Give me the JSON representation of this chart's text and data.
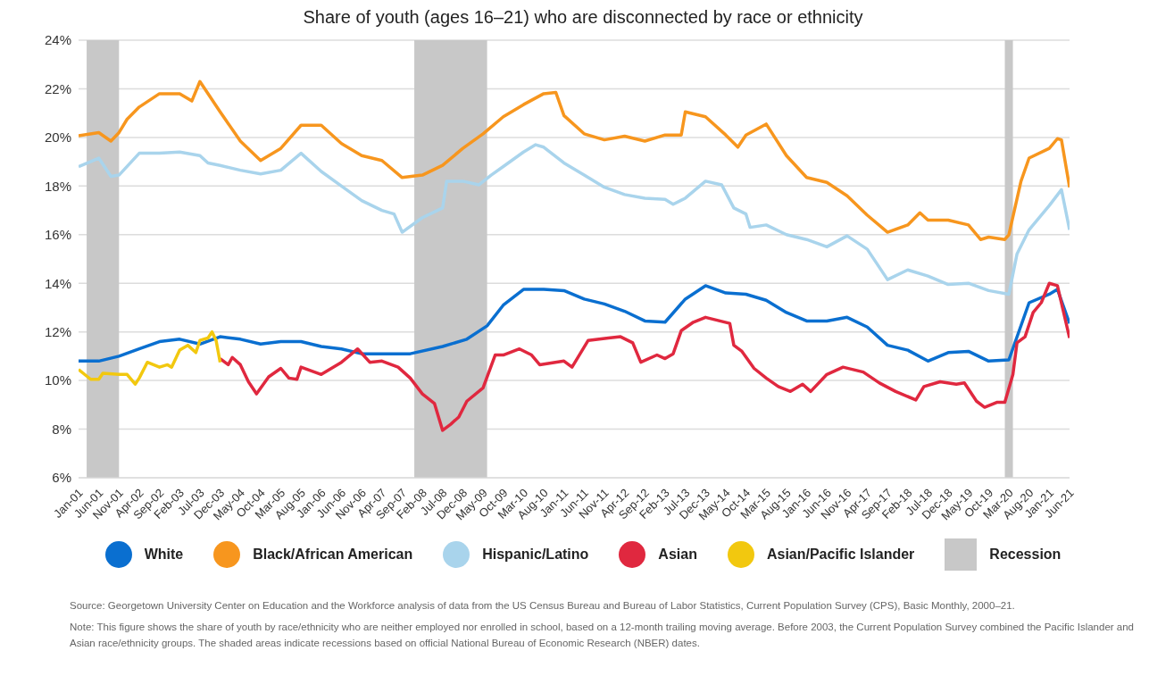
{
  "chart_data": {
    "type": "line",
    "title": "Share of youth (ages 16–21) who are disconnected by race or ethnicity",
    "xlim": [
      "2001-01",
      "2021-06"
    ],
    "xticks": [
      {
        "value": "2001-01",
        "label": "Jan-01"
      },
      {
        "value": "2001-06",
        "label": "Jun-01"
      },
      {
        "value": "2001-11",
        "label": "Nov-01"
      },
      {
        "value": "2002-04",
        "label": "Apr-02"
      },
      {
        "value": "2002-09",
        "label": "Sep-02"
      },
      {
        "value": "2003-02",
        "label": "Feb-03"
      },
      {
        "value": "2003-07",
        "label": "Jul-03"
      },
      {
        "value": "2003-12",
        "label": "Dec-03"
      },
      {
        "value": "2004-05",
        "label": "May-04"
      },
      {
        "value": "2004-10",
        "label": "Oct-04"
      },
      {
        "value": "2005-03",
        "label": "Mar-05"
      },
      {
        "value": "2005-08",
        "label": "Aug-05"
      },
      {
        "value": "2006-01",
        "label": "Jan-06"
      },
      {
        "value": "2006-06",
        "label": "Jun-06"
      },
      {
        "value": "2006-11",
        "label": "Nov-06"
      },
      {
        "value": "2007-04",
        "label": "Apr-07"
      },
      {
        "value": "2007-09",
        "label": "Sep-07"
      },
      {
        "value": "2008-02",
        "label": "Feb-08"
      },
      {
        "value": "2008-07",
        "label": "Jul-08"
      },
      {
        "value": "2008-12",
        "label": "Dec-08"
      },
      {
        "value": "2009-05",
        "label": "May-09"
      },
      {
        "value": "2009-10",
        "label": "Oct-09"
      },
      {
        "value": "2010-03",
        "label": "Mar-10"
      },
      {
        "value": "2010-08",
        "label": "Aug-10"
      },
      {
        "value": "2011-01",
        "label": "Jan-11"
      },
      {
        "value": "2011-06",
        "label": "Jun-11"
      },
      {
        "value": "2011-11",
        "label": "Nov-11"
      },
      {
        "value": "2012-04",
        "label": "Apr-12"
      },
      {
        "value": "2012-09",
        "label": "Sep-12"
      },
      {
        "value": "2013-02",
        "label": "Feb-13"
      },
      {
        "value": "2013-07",
        "label": "Jul-13"
      },
      {
        "value": "2013-12",
        "label": "Dec-13"
      },
      {
        "value": "2014-05",
        "label": "May-14"
      },
      {
        "value": "2014-10",
        "label": "Oct-14"
      },
      {
        "value": "2015-03",
        "label": "Mar-15"
      },
      {
        "value": "2015-08",
        "label": "Aug-15"
      },
      {
        "value": "2016-01",
        "label": "Jan-16"
      },
      {
        "value": "2016-06",
        "label": "Jun-16"
      },
      {
        "value": "2016-11",
        "label": "Nov-16"
      },
      {
        "value": "2017-04",
        "label": "Apr-17"
      },
      {
        "value": "2017-09",
        "label": "Sep-17"
      },
      {
        "value": "2018-02",
        "label": "Feb-18"
      },
      {
        "value": "2018-07",
        "label": "Jul-18"
      },
      {
        "value": "2018-12",
        "label": "Dec-18"
      },
      {
        "value": "2019-05",
        "label": "May-19"
      },
      {
        "value": "2019-10",
        "label": "Oct-19"
      },
      {
        "value": "2020-03",
        "label": "Mar-20"
      },
      {
        "value": "2020-08",
        "label": "Aug-20"
      },
      {
        "value": "2021-01",
        "label": "Jan-21"
      },
      {
        "value": "2021-06",
        "label": "Jun-21"
      }
    ],
    "ylim": [
      6,
      24
    ],
    "yticks": [
      {
        "value": 6,
        "label": "6%"
      },
      {
        "value": 8,
        "label": "8%"
      },
      {
        "value": 10,
        "label": "10%"
      },
      {
        "value": 12,
        "label": "12%"
      },
      {
        "value": 14,
        "label": "14%"
      },
      {
        "value": 16,
        "label": "16%"
      },
      {
        "value": 18,
        "label": "18%"
      },
      {
        "value": 20,
        "label": "20%"
      },
      {
        "value": 22,
        "label": "22%"
      },
      {
        "value": 24,
        "label": "24%"
      }
    ],
    "grid": "y",
    "legend": "bottom",
    "bands": [
      {
        "axis": "x",
        "from": "2001-03",
        "to": "2001-11",
        "label": "Recession",
        "color": "#c8c8c8"
      },
      {
        "axis": "x",
        "from": "2007-12",
        "to": "2009-06",
        "color": "#c8c8c8"
      },
      {
        "axis": "x",
        "from": "2020-02",
        "to": "2020-04",
        "color": "#c8c8c8"
      }
    ],
    "series": [
      {
        "name": "White",
        "color": "#0a6fd0",
        "x": [
          "2001-01",
          "2001-06",
          "2001-11",
          "2002-04",
          "2002-09",
          "2003-02",
          "2003-07",
          "2003-12",
          "2004-05",
          "2004-10",
          "2005-03",
          "2005-08",
          "2006-01",
          "2006-06",
          "2006-11",
          "2007-04",
          "2007-11",
          "2008-07",
          "2009-01",
          "2009-06",
          "2009-10",
          "2010-03",
          "2010-08",
          "2011-01",
          "2011-06",
          "2011-11",
          "2012-04",
          "2012-09",
          "2013-02",
          "2013-07",
          "2013-12",
          "2014-05",
          "2014-10",
          "2015-03",
          "2015-08",
          "2016-01",
          "2016-06",
          "2016-11",
          "2017-04",
          "2017-09",
          "2018-02",
          "2018-07",
          "2018-12",
          "2019-05",
          "2019-10",
          "2020-03",
          "2020-08",
          "2021-01",
          "2021-03",
          "2021-06"
        ],
        "values": [
          10.8,
          10.8,
          11.0,
          11.3,
          11.6,
          11.7,
          11.5,
          11.8,
          11.7,
          11.5,
          11.6,
          11.6,
          11.4,
          11.3,
          11.1,
          11.1,
          11.1,
          11.4,
          11.7,
          12.25,
          13.1,
          13.75,
          13.75,
          13.7,
          13.35,
          13.15,
          12.85,
          12.45,
          12.4,
          13.35,
          13.9,
          13.6,
          13.55,
          13.3,
          12.8,
          12.45,
          12.45,
          12.6,
          12.2,
          11.45,
          11.25,
          10.8,
          11.15,
          11.2,
          10.8,
          10.85,
          13.2,
          13.55,
          13.75,
          12.35
        ]
      },
      {
        "name": "Black/African American",
        "color": "#f7961e",
        "x": [
          "2001-01",
          "2001-06",
          "2001-09",
          "2001-11",
          "2002-01",
          "2002-04",
          "2002-09",
          "2003-02",
          "2003-05",
          "2003-07",
          "2003-12",
          "2004-05",
          "2004-10",
          "2005-03",
          "2005-08",
          "2006-01",
          "2006-06",
          "2006-11",
          "2007-04",
          "2007-09",
          "2008-02",
          "2008-07",
          "2008-12",
          "2009-05",
          "2009-10",
          "2010-03",
          "2010-08",
          "2010-11",
          "2011-01",
          "2011-06",
          "2011-11",
          "2012-04",
          "2012-09",
          "2013-02",
          "2013-06",
          "2013-07",
          "2013-12",
          "2014-05",
          "2014-08",
          "2014-10",
          "2015-03",
          "2015-08",
          "2016-01",
          "2016-06",
          "2016-11",
          "2017-04",
          "2017-09",
          "2018-02",
          "2018-05",
          "2018-07",
          "2018-12",
          "2019-05",
          "2019-08",
          "2019-10",
          "2020-02",
          "2020-03",
          "2020-06",
          "2020-08",
          "2021-01",
          "2021-03",
          "2021-04",
          "2021-06"
        ],
        "values": [
          20.07,
          20.2,
          19.85,
          20.2,
          20.75,
          21.25,
          21.8,
          21.8,
          21.5,
          22.3,
          21.05,
          19.85,
          19.05,
          19.55,
          20.5,
          20.5,
          19.75,
          19.25,
          19.05,
          18.35,
          18.45,
          18.85,
          19.55,
          20.15,
          20.85,
          21.35,
          21.8,
          21.85,
          20.9,
          20.15,
          19.9,
          20.05,
          19.85,
          20.1,
          20.1,
          21.05,
          20.85,
          20.1,
          19.6,
          20.1,
          20.55,
          19.25,
          18.35,
          18.15,
          17.6,
          16.8,
          16.1,
          16.4,
          16.9,
          16.6,
          16.6,
          16.4,
          15.8,
          15.9,
          15.8,
          16.0,
          18.2,
          19.15,
          19.55,
          19.95,
          19.9,
          17.95
        ]
      },
      {
        "name": "Hispanic/Latino",
        "color": "#a9d4ec",
        "x": [
          "2001-01",
          "2001-06",
          "2001-09",
          "2001-11",
          "2002-04",
          "2002-09",
          "2003-02",
          "2003-07",
          "2003-09",
          "2003-12",
          "2004-05",
          "2004-10",
          "2005-03",
          "2005-08",
          "2006-01",
          "2006-06",
          "2006-11",
          "2007-04",
          "2007-07",
          "2007-09",
          "2008-02",
          "2008-07",
          "2008-08",
          "2008-12",
          "2009-04",
          "2009-07",
          "2009-10",
          "2010-03",
          "2010-06",
          "2010-08",
          "2011-01",
          "2011-06",
          "2011-11",
          "2012-04",
          "2012-09",
          "2013-02",
          "2013-04",
          "2013-07",
          "2013-12",
          "2014-04",
          "2014-07",
          "2014-10",
          "2014-11",
          "2015-03",
          "2015-08",
          "2016-01",
          "2016-06",
          "2016-11",
          "2017-04",
          "2017-09",
          "2018-02",
          "2018-07",
          "2018-12",
          "2019-05",
          "2019-10",
          "2020-03",
          "2020-05",
          "2020-08",
          "2021-01",
          "2021-04",
          "2021-06"
        ],
        "values": [
          18.8,
          19.15,
          18.4,
          18.45,
          19.35,
          19.35,
          19.4,
          19.25,
          18.95,
          18.85,
          18.65,
          18.5,
          18.65,
          19.35,
          18.6,
          18.0,
          17.4,
          17.0,
          16.85,
          16.1,
          16.7,
          17.1,
          18.2,
          18.2,
          18.05,
          18.45,
          18.8,
          19.4,
          19.7,
          19.6,
          18.95,
          18.45,
          17.95,
          17.65,
          17.5,
          17.45,
          17.25,
          17.5,
          18.2,
          18.05,
          17.1,
          16.85,
          16.3,
          16.4,
          16.0,
          15.8,
          15.5,
          15.95,
          15.4,
          14.15,
          14.55,
          14.3,
          13.95,
          14.0,
          13.7,
          13.55,
          15.2,
          16.2,
          17.2,
          17.85,
          16.2
        ]
      },
      {
        "name": "Asian",
        "color": "#e0283f",
        "x": [
          "2003-12",
          "2004-02",
          "2004-03",
          "2004-05",
          "2004-07",
          "2004-09",
          "2004-12",
          "2005-03",
          "2005-05",
          "2005-07",
          "2005-08",
          "2006-01",
          "2006-06",
          "2006-10",
          "2007-01",
          "2007-04",
          "2007-08",
          "2007-11",
          "2008-02",
          "2008-05",
          "2008-07",
          "2008-09",
          "2008-11",
          "2009-01",
          "2009-05",
          "2009-08",
          "2009-10",
          "2010-02",
          "2010-05",
          "2010-07",
          "2011-01",
          "2011-03",
          "2011-07",
          "2011-12",
          "2012-03",
          "2012-06",
          "2012-08",
          "2012-12",
          "2013-02",
          "2013-04",
          "2013-06",
          "2013-09",
          "2013-12",
          "2014-06",
          "2014-07",
          "2014-09",
          "2014-12",
          "2015-03",
          "2015-06",
          "2015-09",
          "2015-12",
          "2016-02",
          "2016-06",
          "2016-10",
          "2017-03",
          "2017-07",
          "2017-11",
          "2018-04",
          "2018-06",
          "2018-10",
          "2019-02",
          "2019-04",
          "2019-07",
          "2019-09",
          "2019-12",
          "2020-02",
          "2020-04",
          "2020-05",
          "2020-07",
          "2020-09",
          "2020-11",
          "2021-01",
          "2021-03",
          "2021-06"
        ],
        "values": [
          10.9,
          10.65,
          10.95,
          10.65,
          9.95,
          9.45,
          10.15,
          10.5,
          10.1,
          10.05,
          10.55,
          10.25,
          10.75,
          11.3,
          10.75,
          10.8,
          10.55,
          10.1,
          9.45,
          9.05,
          7.95,
          8.2,
          8.5,
          9.15,
          9.7,
          11.05,
          11.05,
          11.3,
          11.05,
          10.65,
          10.8,
          10.55,
          11.65,
          11.75,
          11.8,
          11.55,
          10.75,
          11.05,
          10.9,
          11.1,
          12.05,
          12.4,
          12.6,
          12.35,
          11.45,
          11.2,
          10.5,
          10.1,
          9.75,
          9.55,
          9.85,
          9.55,
          10.25,
          10.55,
          10.35,
          9.9,
          9.55,
          9.2,
          9.75,
          9.95,
          9.85,
          9.9,
          9.15,
          8.9,
          9.1,
          9.1,
          10.25,
          11.55,
          11.8,
          12.8,
          13.2,
          14.0,
          13.9,
          11.75
        ]
      },
      {
        "name": "Asian/Pacific Islander",
        "color": "#f2c80f",
        "x": [
          "2001-01",
          "2001-04",
          "2001-06",
          "2001-07",
          "2001-11",
          "2002-01",
          "2002-03",
          "2002-04",
          "2002-06",
          "2002-09",
          "2002-11",
          "2002-12",
          "2003-02",
          "2003-04",
          "2003-06",
          "2003-07",
          "2003-09",
          "2003-10",
          "2003-11",
          "2003-12"
        ],
        "values": [
          10.45,
          10.05,
          10.05,
          10.3,
          10.25,
          10.25,
          9.85,
          10.1,
          10.75,
          10.55,
          10.65,
          10.55,
          11.25,
          11.45,
          11.15,
          11.65,
          11.75,
          12.0,
          11.65,
          10.75
        ]
      }
    ],
    "annotations": [
      "Source: Georgetown University Center on Education and the Workforce analysis of data from the US Census Bureau and Bureau of Labor Statistics, Current Population Survey (CPS), Basic Monthly, 2000–21.",
      "Note: This figure shows the share of youth by race/ethnicity who are neither employed nor enrolled in school, based on a 12-month trailing moving average. Before 2003, the Current Population Survey combined the Pacific Islander and Asian race/ethnicity groups. The shaded areas indicate recessions based on official National Bureau of Economic Research (NBER) dates."
    ]
  }
}
